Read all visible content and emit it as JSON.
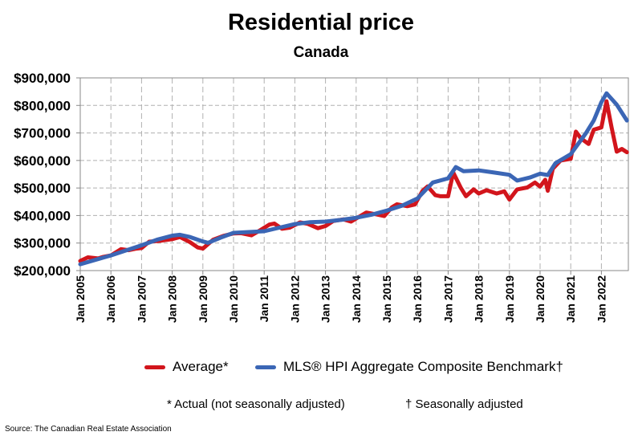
{
  "chart_data": {
    "type": "line",
    "title": "Residential price",
    "subtitle": "Canada",
    "xlabel": "",
    "ylabel": "",
    "ylim": [
      200000,
      900000
    ],
    "yticks": [
      "$200,000",
      "$300,000",
      "$400,000",
      "$500,000",
      "$600,000",
      "$700,000",
      "$800,000",
      "$900,000"
    ],
    "xticks": [
      "Jan 2005",
      "Jan 2006",
      "Jan 2007",
      "Jan 2008",
      "Jan 2009",
      "Jan 2010",
      "Jan 2011",
      "Jan 2012",
      "Jan 2013",
      "Jan 2014",
      "Jan 2015",
      "Jan 2016",
      "Jan 2017",
      "Jan 2018",
      "Jan 2019",
      "Jan 2020",
      "Jan 2021",
      "Jan 2022"
    ],
    "xrange": [
      "2005-01",
      "2022-11"
    ],
    "grid": true,
    "legend_position": "bottom",
    "value_units": "thousands of dollars",
    "series": [
      {
        "name": "Average*",
        "color": "#d2151c",
        "points": [
          [
            "2005-01",
            235
          ],
          [
            "2005-04",
            248
          ],
          [
            "2005-08",
            244
          ],
          [
            "2005-10",
            250
          ],
          [
            "2006-01",
            255
          ],
          [
            "2006-05",
            278
          ],
          [
            "2006-08",
            274
          ],
          [
            "2006-11",
            280
          ],
          [
            "2007-01",
            282
          ],
          [
            "2007-04",
            305
          ],
          [
            "2007-08",
            308
          ],
          [
            "2007-11",
            312
          ],
          [
            "2008-01",
            314
          ],
          [
            "2008-04",
            322
          ],
          [
            "2008-08",
            303
          ],
          [
            "2008-11",
            284
          ],
          [
            "2009-01",
            280
          ],
          [
            "2009-05",
            312
          ],
          [
            "2009-09",
            326
          ],
          [
            "2010-01",
            335
          ],
          [
            "2010-04",
            336
          ],
          [
            "2010-08",
            328
          ],
          [
            "2010-11",
            344
          ],
          [
            "2011-03",
            367
          ],
          [
            "2011-05",
            371
          ],
          [
            "2011-08",
            352
          ],
          [
            "2011-11",
            356
          ],
          [
            "2012-03",
            375
          ],
          [
            "2012-06",
            370
          ],
          [
            "2012-10",
            354
          ],
          [
            "2013-01",
            362
          ],
          [
            "2013-04",
            380
          ],
          [
            "2013-08",
            386
          ],
          [
            "2013-11",
            378
          ],
          [
            "2014-03",
            400
          ],
          [
            "2014-05",
            411
          ],
          [
            "2014-09",
            404
          ],
          [
            "2014-12",
            398
          ],
          [
            "2015-03",
            430
          ],
          [
            "2015-05",
            441
          ],
          [
            "2015-09",
            434
          ],
          [
            "2015-12",
            440
          ],
          [
            "2016-03",
            490
          ],
          [
            "2016-05",
            506
          ],
          [
            "2016-08",
            474
          ],
          [
            "2016-10",
            470
          ],
          [
            "2017-01",
            470
          ],
          [
            "2017-03",
            556
          ],
          [
            "2017-06",
            500
          ],
          [
            "2017-08",
            470
          ],
          [
            "2017-11",
            495
          ],
          [
            "2018-01",
            480
          ],
          [
            "2018-04",
            492
          ],
          [
            "2018-08",
            480
          ],
          [
            "2018-11",
            488
          ],
          [
            "2019-01",
            458
          ],
          [
            "2019-04",
            495
          ],
          [
            "2019-08",
            502
          ],
          [
            "2019-11",
            520
          ],
          [
            "2020-01",
            505
          ],
          [
            "2020-03",
            530
          ],
          [
            "2020-04",
            490
          ],
          [
            "2020-06",
            570
          ],
          [
            "2020-09",
            600
          ],
          [
            "2021-01",
            606
          ],
          [
            "2021-03",
            705
          ],
          [
            "2021-05",
            680
          ],
          [
            "2021-08",
            660
          ],
          [
            "2021-10",
            712
          ],
          [
            "2022-01",
            720
          ],
          [
            "2022-03",
            815
          ],
          [
            "2022-05",
            720
          ],
          [
            "2022-07",
            632
          ],
          [
            "2022-09",
            642
          ],
          [
            "2022-11",
            630
          ]
        ]
      },
      {
        "name": "MLS® HPI Aggregate Composite Benchmark†",
        "color": "#3b66b5",
        "points": [
          [
            "2005-01",
            223
          ],
          [
            "2006-01",
            255
          ],
          [
            "2007-01",
            292
          ],
          [
            "2007-07",
            312
          ],
          [
            "2008-01",
            327
          ],
          [
            "2008-04",
            330
          ],
          [
            "2008-08",
            322
          ],
          [
            "2009-01",
            306
          ],
          [
            "2009-03",
            301
          ],
          [
            "2009-08",
            320
          ],
          [
            "2010-01",
            337
          ],
          [
            "2011-01",
            343
          ],
          [
            "2011-07",
            356
          ],
          [
            "2012-01",
            369
          ],
          [
            "2012-07",
            376
          ],
          [
            "2013-01",
            378
          ],
          [
            "2013-07",
            384
          ],
          [
            "2014-01",
            392
          ],
          [
            "2014-07",
            403
          ],
          [
            "2015-01",
            418
          ],
          [
            "2015-07",
            436
          ],
          [
            "2016-01",
            462
          ],
          [
            "2016-07",
            520
          ],
          [
            "2017-01",
            535
          ],
          [
            "2017-04",
            576
          ],
          [
            "2017-07",
            561
          ],
          [
            "2018-01",
            564
          ],
          [
            "2018-07",
            556
          ],
          [
            "2019-01",
            548
          ],
          [
            "2019-04",
            527
          ],
          [
            "2019-09",
            538
          ],
          [
            "2020-01",
            552
          ],
          [
            "2020-04",
            547
          ],
          [
            "2020-07",
            590
          ],
          [
            "2021-01",
            623
          ],
          [
            "2021-07",
            700
          ],
          [
            "2021-10",
            745
          ],
          [
            "2022-01",
            812
          ],
          [
            "2022-03",
            844
          ],
          [
            "2022-07",
            803
          ],
          [
            "2022-11",
            745
          ]
        ]
      }
    ],
    "footnotes": [
      "* Actual (not seasonally adjusted)",
      "† Seasonally adjusted"
    ],
    "source": "Source: The Canadian Real Estate Association"
  }
}
